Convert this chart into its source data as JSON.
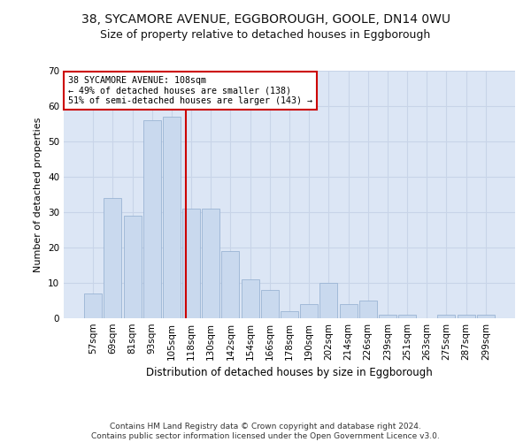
{
  "title1": "38, SYCAMORE AVENUE, EGGBOROUGH, GOOLE, DN14 0WU",
  "title2": "Size of property relative to detached houses in Eggborough",
  "xlabel": "Distribution of detached houses by size in Eggborough",
  "ylabel": "Number of detached properties",
  "bar_labels": [
    "57sqm",
    "69sqm",
    "81sqm",
    "93sqm",
    "105sqm",
    "118sqm",
    "130sqm",
    "142sqm",
    "154sqm",
    "166sqm",
    "178sqm",
    "190sqm",
    "202sqm",
    "214sqm",
    "226sqm",
    "239sqm",
    "251sqm",
    "263sqm",
    "275sqm",
    "287sqm",
    "299sqm"
  ],
  "bar_values": [
    7,
    34,
    29,
    56,
    57,
    31,
    31,
    19,
    11,
    8,
    2,
    4,
    10,
    4,
    5,
    1,
    1,
    0,
    1,
    1,
    1
  ],
  "bar_color": "#c9d9ee",
  "bar_edge_color": "#9ab4d4",
  "vline_x": 4.72,
  "vline_color": "#cc0000",
  "annotation_text": "38 SYCAMORE AVENUE: 108sqm\n← 49% of detached houses are smaller (138)\n51% of semi-detached houses are larger (143) →",
  "annotation_box_color": "#ffffff",
  "annotation_box_edge": "#cc0000",
  "ylim": [
    0,
    70
  ],
  "yticks": [
    0,
    10,
    20,
    30,
    40,
    50,
    60,
    70
  ],
  "grid_color": "#c8d4e8",
  "background_color": "#dce6f5",
  "footer_text": "Contains HM Land Registry data © Crown copyright and database right 2024.\nContains public sector information licensed under the Open Government Licence v3.0.",
  "title1_fontsize": 10,
  "title2_fontsize": 9,
  "xlabel_fontsize": 8.5,
  "ylabel_fontsize": 8,
  "tick_fontsize": 7.5,
  "footer_fontsize": 6.5
}
